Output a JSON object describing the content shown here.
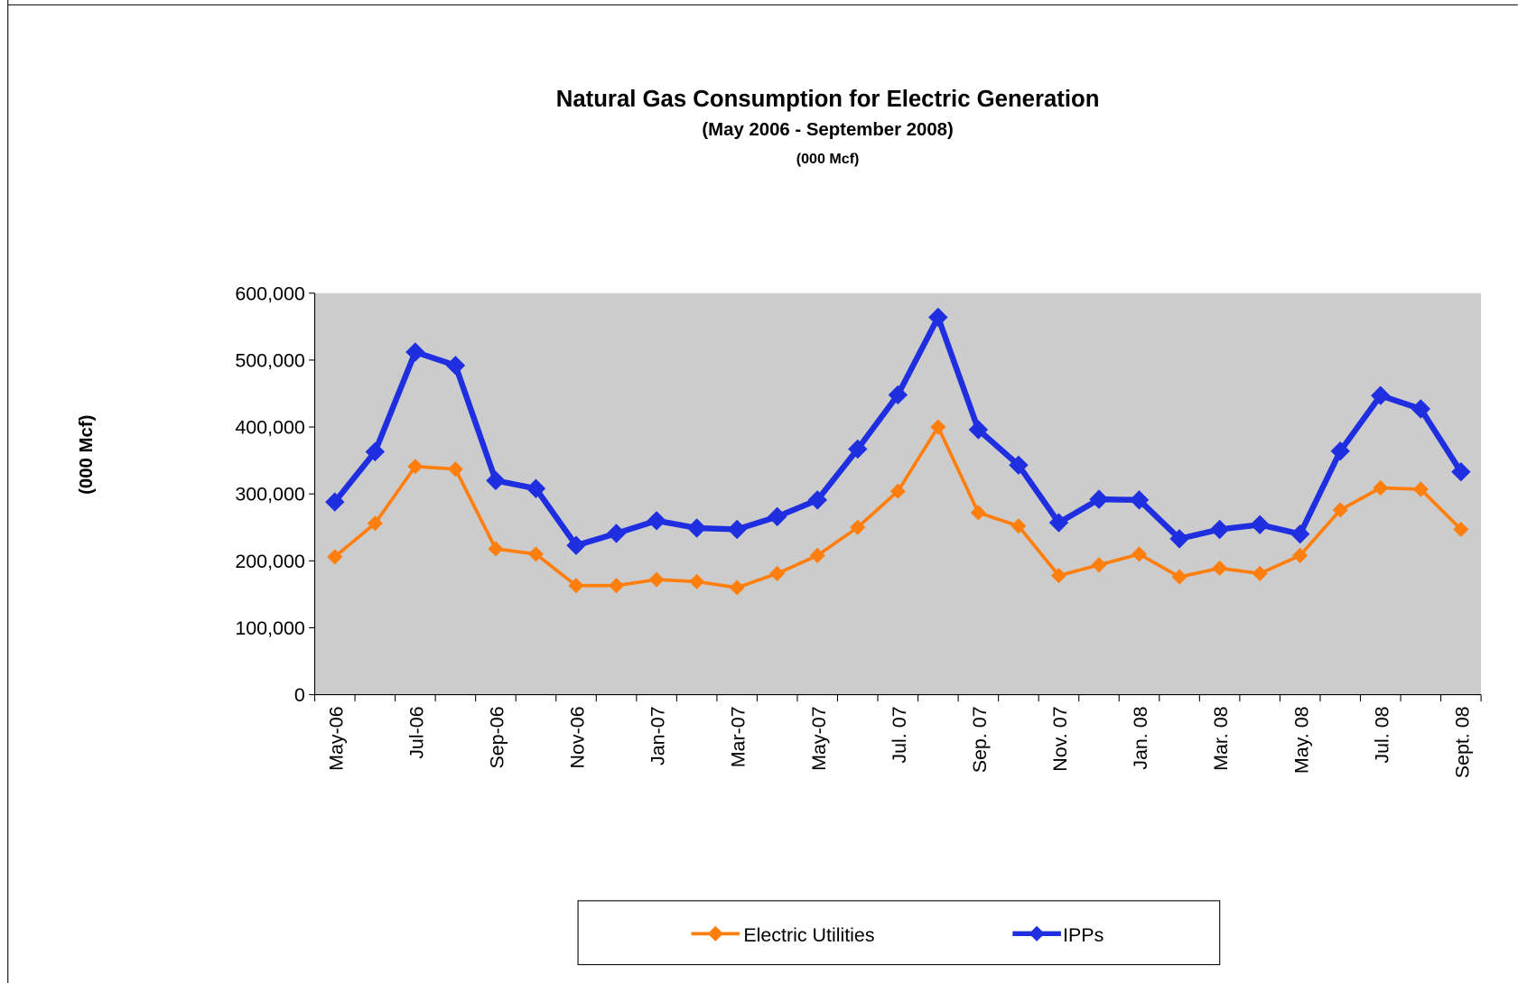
{
  "chart_data": {
    "type": "line",
    "title": "Natural Gas Consumption for Electric Generation",
    "subtitle": "(May 2006 - September 2008)",
    "unit_note": "(000 Mcf)",
    "y_label": "(000 Mcf)",
    "categories": [
      "May-06",
      null,
      "Jul-06",
      null,
      "Sep-06",
      null,
      "Nov-06",
      null,
      "Jan-07",
      null,
      "Mar-07",
      null,
      "May-07",
      null,
      "Jul. 07",
      null,
      "Sep. 07",
      null,
      "Nov. 07",
      null,
      "Jan. 08",
      null,
      "Mar. 08",
      null,
      "May. 08",
      null,
      "Jul. 08",
      null,
      "Sept. 08"
    ],
    "series": [
      {
        "name": "Electric Utilities",
        "color": "#ff7f0e",
        "values": [
          206000,
          256000,
          341000,
          337000,
          218000,
          210000,
          163000,
          163000,
          172000,
          169000,
          160000,
          181000,
          208000,
          250000,
          304000,
          400000,
          272000,
          252000,
          178000,
          194000,
          210000,
          176000,
          189000,
          181000,
          208000,
          276000,
          309000,
          307000,
          247000
        ]
      },
      {
        "name": "IPPs",
        "color": "#1f2fe0",
        "values": [
          288000,
          363000,
          512000,
          492000,
          320000,
          308000,
          223000,
          241000,
          260000,
          249000,
          247000,
          266000,
          291000,
          367000,
          448000,
          564000,
          396000,
          343000,
          257000,
          292000,
          291000,
          233000,
          247000,
          254000,
          240000,
          364000,
          447000,
          427000,
          333000
        ]
      }
    ],
    "ylim": [
      0,
      600000
    ],
    "yticks": [
      0,
      {
        "value": 100000,
        "label": "100,000"
      },
      {
        "value": 200000,
        "label": "200,000"
      },
      {
        "value": 300000,
        "label": "300,000"
      },
      {
        "value": 400000,
        "label": "400,000"
      },
      {
        "value": 500000,
        "label": "500,000"
      },
      {
        "value": 600000,
        "label": "600,000"
      }
    ],
    "plot_background": "#cccccc",
    "legend": "bottom"
  }
}
